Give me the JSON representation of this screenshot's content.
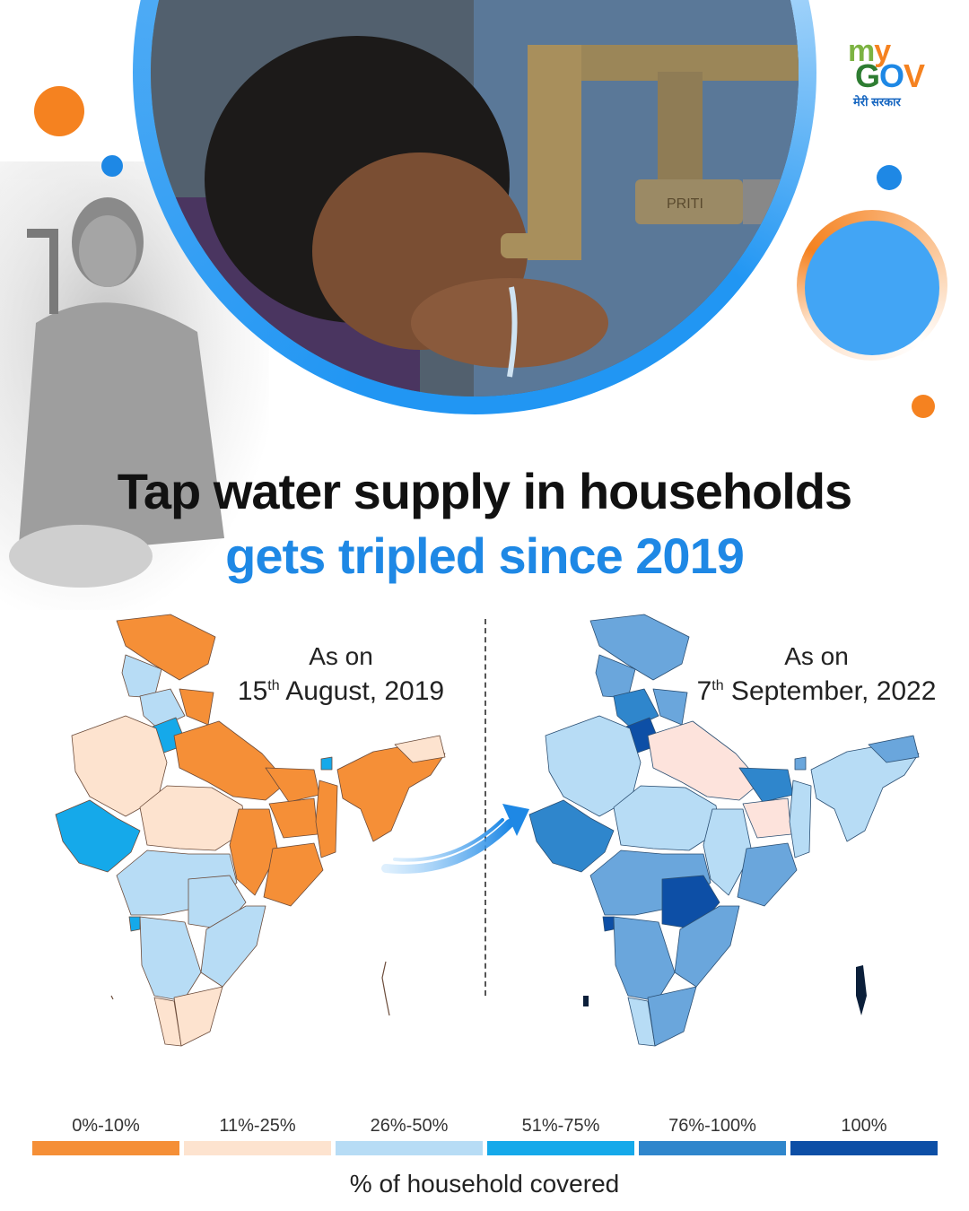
{
  "logo": {
    "my_m": "m",
    "my_y": "y",
    "gov_g": "G",
    "gov_o": "O",
    "gov_v": "V",
    "subtitle": "मेरी सरकार"
  },
  "headline": {
    "line1": "Tap water supply in households",
    "line2": "gets tripled since 2019"
  },
  "maps": {
    "left": {
      "prefix": "As on",
      "day": "15",
      "suffix": "th",
      "rest": " August, 2019"
    },
    "right": {
      "prefix": "As on",
      "day": "7",
      "suffix": "th",
      "rest": " September, 2022"
    }
  },
  "legend": {
    "title": "% of household covered",
    "items": [
      {
        "label": "0%-10%",
        "color": "#f58f37"
      },
      {
        "label": "11%-25%",
        "color": "#fde3cf"
      },
      {
        "label": "26%-50%",
        "color": "#b7dcf5"
      },
      {
        "label": "51%-75%",
        "color": "#15a9ea"
      },
      {
        "label": "76%-100%",
        "color": "#2f86cc"
      },
      {
        "label": "100%",
        "color": "#0d4fa6"
      }
    ]
  },
  "photo_text": {
    "tap_brand": "PRITI"
  },
  "colors": {
    "accent_blue": "#1e88e5",
    "accent_orange": "#f58220"
  }
}
